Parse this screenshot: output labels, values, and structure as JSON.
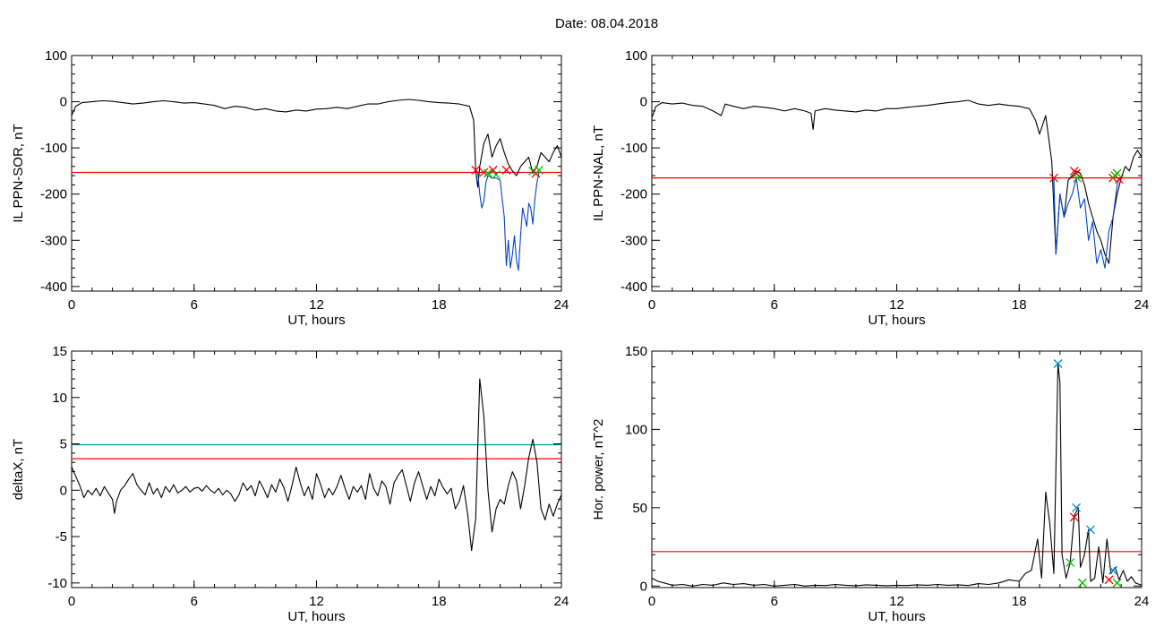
{
  "page": {
    "title": "Date:  08.04.2018"
  },
  "chart_data": [
    {
      "type": "line",
      "title": "",
      "xlabel": "UT, hours",
      "ylabel": "IL PPN-SOR, nT",
      "xlim": [
        0,
        24
      ],
      "ylim": [
        -410,
        100
      ],
      "xticks": [
        0,
        6,
        12,
        18,
        24
      ],
      "yticks": [
        100,
        0,
        -100,
        -200,
        -300,
        -400
      ],
      "thresholds": [
        {
          "y": -153,
          "color": "#ff0000"
        }
      ],
      "series": [
        {
          "color": "#000000",
          "x": [
            0,
            0.2,
            0.5,
            1,
            1.5,
            2,
            2.5,
            3,
            3.5,
            4,
            4.5,
            5,
            5.5,
            6,
            6.5,
            7,
            7.5,
            8,
            8.5,
            9,
            9.5,
            10,
            10.5,
            11,
            11.5,
            12,
            12.5,
            13,
            13.5,
            14,
            14.5,
            15,
            15.5,
            16,
            16.5,
            17,
            17.5,
            18,
            18.5,
            19,
            19.5,
            19.7,
            19.8,
            19.9,
            20,
            20.2,
            20.4,
            20.6,
            20.8,
            21,
            21.2,
            21.4,
            21.6,
            21.8,
            22,
            22.2,
            22.4,
            22.6,
            22.8,
            23,
            23.2,
            23.4,
            23.6,
            23.8,
            24
          ],
          "y": [
            -30,
            -10,
            -2,
            0,
            2,
            1,
            -2,
            -5,
            -3,
            0,
            2,
            0,
            -3,
            -2,
            -5,
            -8,
            -15,
            -10,
            -12,
            -18,
            -15,
            -20,
            -22,
            -18,
            -20,
            -16,
            -15,
            -12,
            -15,
            -10,
            -5,
            -5,
            0,
            3,
            5,
            3,
            0,
            -2,
            -3,
            -5,
            -10,
            -40,
            -150,
            -185,
            -140,
            -90,
            -70,
            -120,
            -95,
            -80,
            -110,
            -135,
            -150,
            -160,
            -140,
            -130,
            -120,
            -155,
            -140,
            -110,
            -120,
            -130,
            -110,
            -95,
            -120
          ]
        },
        {
          "color": "#0044cc",
          "x": [
            19.9,
            20,
            20.1,
            20.2,
            20.3,
            20.4,
            20.6,
            20.8,
            21,
            21.2,
            21.3,
            21.4,
            21.5,
            21.6,
            21.7,
            21.8,
            21.9,
            22,
            22.1,
            22.2,
            22.3,
            22.4,
            22.5,
            22.6,
            22.7,
            22.8,
            22.9
          ],
          "y": [
            -153,
            -200,
            -230,
            -215,
            -175,
            -160,
            -165,
            -165,
            -170,
            -250,
            -355,
            -300,
            -360,
            -330,
            -290,
            -345,
            -365,
            -290,
            -230,
            -250,
            -270,
            -220,
            -230,
            -265,
            -210,
            -175,
            -153
          ]
        }
      ],
      "markers": [
        {
          "x": 19.8,
          "y": -148,
          "color": "#ff0000",
          "symbol": "x"
        },
        {
          "x": 20.2,
          "y": -153,
          "color": "#ff0000",
          "symbol": "x"
        },
        {
          "x": 20.4,
          "y": -155,
          "color": "#00bb00",
          "symbol": "x"
        },
        {
          "x": 20.65,
          "y": -148,
          "color": "#ff0000",
          "symbol": "x"
        },
        {
          "x": 20.8,
          "y": -158,
          "color": "#00bb00",
          "symbol": "x"
        },
        {
          "x": 21.3,
          "y": -148,
          "color": "#ff0000",
          "symbol": "x"
        },
        {
          "x": 22.6,
          "y": -150,
          "color": "#00bb00",
          "symbol": "x"
        },
        {
          "x": 22.75,
          "y": -155,
          "color": "#ff0000",
          "symbol": "x"
        },
        {
          "x": 22.9,
          "y": -148,
          "color": "#00bb00",
          "symbol": "x"
        }
      ]
    },
    {
      "type": "line",
      "title": "",
      "xlabel": "UT, hours",
      "ylabel": "IL PPN-NAL, nT",
      "xlim": [
        0,
        24
      ],
      "ylim": [
        -410,
        100
      ],
      "xticks": [
        0,
        6,
        12,
        18,
        24
      ],
      "yticks": [
        100,
        0,
        -100,
        -200,
        -300,
        -400
      ],
      "thresholds": [
        {
          "y": -165,
          "color": "#ff0000"
        }
      ],
      "series": [
        {
          "color": "#000000",
          "x": [
            0,
            0.2,
            0.5,
            1,
            1.5,
            2,
            2.5,
            3,
            3.4,
            3.6,
            4,
            4.5,
            5,
            5.5,
            6,
            6.5,
            7,
            7.5,
            7.8,
            7.9,
            8,
            8.5,
            9,
            9.5,
            10,
            10.5,
            11,
            11.5,
            12,
            12.5,
            13,
            13.5,
            14,
            14.5,
            15,
            15.5,
            16,
            16.5,
            17,
            17.5,
            18,
            18.5,
            18.8,
            19,
            19.3,
            19.6,
            19.8,
            20,
            20.2,
            20.4,
            20.6,
            20.8,
            21,
            21.2,
            21.4,
            21.6,
            21.8,
            22,
            22.2,
            22.4,
            22.6,
            22.8,
            23,
            23.2,
            23.4,
            23.6,
            23.8,
            24
          ],
          "y": [
            -35,
            -10,
            -2,
            -5,
            -3,
            -8,
            -10,
            -20,
            -30,
            -5,
            -10,
            -15,
            -10,
            -12,
            -15,
            -20,
            -15,
            -20,
            -25,
            -60,
            -20,
            -15,
            -18,
            -20,
            -22,
            -18,
            -20,
            -15,
            -15,
            -12,
            -10,
            -8,
            -5,
            -2,
            0,
            3,
            -5,
            -8,
            -5,
            -8,
            -10,
            -15,
            -40,
            -70,
            -30,
            -130,
            -330,
            -200,
            -250,
            -170,
            -160,
            -150,
            -155,
            -180,
            -220,
            -250,
            -280,
            -300,
            -330,
            -350,
            -250,
            -200,
            -165,
            -140,
            -150,
            -120,
            -105,
            -120
          ]
        },
        {
          "color": "#0044cc",
          "x": [
            19.7,
            19.8,
            20,
            20.2,
            20.4,
            20.6,
            20.8,
            21,
            21.2,
            21.4,
            21.6,
            21.8,
            22,
            22.2,
            22.4,
            22.6,
            22.8,
            22.9
          ],
          "y": [
            -165,
            -330,
            -200,
            -250,
            -220,
            -200,
            -165,
            -230,
            -210,
            -300,
            -260,
            -350,
            -320,
            -360,
            -280,
            -250,
            -180,
            -165
          ]
        }
      ],
      "markers": [
        {
          "x": 19.7,
          "y": -165,
          "color": "#ff0000",
          "symbol": "x"
        },
        {
          "x": 20.7,
          "y": -150,
          "color": "#ff0000",
          "symbol": "x"
        },
        {
          "x": 20.8,
          "y": -155,
          "color": "#ff0000",
          "symbol": "x"
        },
        {
          "x": 20.85,
          "y": -165,
          "color": "#00bb00",
          "symbol": "x"
        },
        {
          "x": 22.6,
          "y": -165,
          "color": "#ff0000",
          "symbol": "x"
        },
        {
          "x": 22.7,
          "y": -160,
          "color": "#00bb00",
          "symbol": "x"
        },
        {
          "x": 22.8,
          "y": -155,
          "color": "#00bb00",
          "symbol": "x"
        },
        {
          "x": 22.9,
          "y": -168,
          "color": "#ff0000",
          "symbol": "x"
        }
      ]
    },
    {
      "type": "line",
      "title": "",
      "xlabel": "UT, hours",
      "ylabel": "deltaX, nT",
      "xlim": [
        0,
        24
      ],
      "ylim": [
        -10.5,
        15
      ],
      "xticks": [
        0,
        6,
        12,
        18,
        24
      ],
      "yticks": [
        15,
        10,
        5,
        0,
        -5,
        -10
      ],
      "thresholds": [
        {
          "y": 4.9,
          "color": "#0088aa"
        },
        {
          "y": 3.4,
          "color": "#ff0000"
        }
      ],
      "series": [
        {
          "color": "#000000",
          "x": [
            0,
            0.2,
            0.4,
            0.6,
            0.8,
            1,
            1.2,
            1.4,
            1.6,
            1.8,
            2,
            2.1,
            2.2,
            2.4,
            2.6,
            2.8,
            3,
            3.2,
            3.4,
            3.6,
            3.8,
            4,
            4.2,
            4.4,
            4.6,
            4.8,
            5,
            5.2,
            5.4,
            5.6,
            5.8,
            6,
            6.2,
            6.4,
            6.6,
            6.8,
            7,
            7.2,
            7.4,
            7.6,
            7.8,
            8,
            8.2,
            8.4,
            8.6,
            8.8,
            9,
            9.2,
            9.4,
            9.6,
            9.8,
            10,
            10.2,
            10.4,
            10.6,
            10.8,
            11,
            11.2,
            11.4,
            11.6,
            11.8,
            12,
            12.2,
            12.4,
            12.6,
            12.8,
            13,
            13.2,
            13.4,
            13.6,
            13.8,
            14,
            14.2,
            14.4,
            14.6,
            14.8,
            15,
            15.2,
            15.4,
            15.6,
            15.8,
            16,
            16.2,
            16.4,
            16.6,
            16.8,
            17,
            17.2,
            17.4,
            17.6,
            17.8,
            18,
            18.2,
            18.4,
            18.6,
            18.8,
            19,
            19.2,
            19.4,
            19.6,
            19.8,
            20,
            20.2,
            20.4,
            20.6,
            20.8,
            21,
            21.2,
            21.4,
            21.6,
            21.8,
            22,
            22.2,
            22.4,
            22.6,
            22.8,
            23,
            23.2,
            23.4,
            23.6,
            23.8,
            24
          ],
          "y": [
            2.5,
            1.5,
            0.5,
            -0.8,
            0,
            -0.5,
            0.2,
            -0.6,
            0.4,
            -0.3,
            -1,
            -2.5,
            -1.2,
            0,
            0.5,
            1.2,
            1.8,
            0.6,
            0,
            -0.5,
            0.8,
            -0.4,
            0.2,
            -0.8,
            0.4,
            -0.2,
            0.6,
            -0.3,
            0,
            0.4,
            -0.2,
            0.2,
            0.3,
            -0.1,
            0.5,
            0,
            -0.3,
            0.2,
            -0.5,
            0,
            -0.4,
            -1.2,
            -0.5,
            0.8,
            0,
            0.5,
            -0.6,
            1,
            0.2,
            -0.8,
            0.6,
            -0.2,
            1.2,
            0.3,
            -1.2,
            0.5,
            2.5,
            0.8,
            -0.6,
            0.4,
            -1,
            1.8,
            0.6,
            -0.8,
            0.2,
            -0.5,
            0.4,
            1.6,
            0.2,
            -1,
            0.4,
            -0.2,
            0.5,
            -1,
            1.8,
            0.2,
            -0.6,
            1,
            0.4,
            -1.5,
            0.8,
            1.6,
            2.2,
            0.5,
            -1.2,
            0.8,
            2,
            0.5,
            -1,
            0.4,
            -0.6,
            1.2,
            0.3,
            -0.4,
            0.2,
            -2,
            -1.2,
            0.5,
            -2.5,
            -6.5,
            -3,
            12,
            8,
            0,
            -4.5,
            -2,
            -1,
            -1.5,
            0.5,
            2,
            1,
            -2,
            0.5,
            3.5,
            5.5,
            3,
            -2,
            -3.2,
            -1.5,
            -2.8,
            -1.5,
            -0.5
          ]
        }
      ],
      "markers": []
    },
    {
      "type": "line",
      "title": "",
      "xlabel": "UT, hours",
      "ylabel": "Hor. power, nT^2",
      "xlim": [
        0,
        24
      ],
      "ylim": [
        -1,
        150
      ],
      "xticks": [
        0,
        6,
        12,
        18,
        24
      ],
      "yticks": [
        150,
        100,
        50,
        0
      ],
      "thresholds": [
        {
          "y": 22,
          "color": "#ff0000"
        }
      ],
      "series": [
        {
          "color": "#000000",
          "x": [
            0,
            0.3,
            0.6,
            1,
            1.5,
            2,
            2.5,
            3,
            3.5,
            4,
            4.5,
            5,
            5.5,
            6,
            6.5,
            7,
            7.5,
            8,
            8.5,
            9,
            9.5,
            10,
            10.5,
            11,
            11.5,
            12,
            12.5,
            13,
            13.5,
            14,
            14.5,
            15,
            15.5,
            16,
            16.5,
            17,
            17.5,
            18,
            18.3,
            18.6,
            18.9,
            19.1,
            19.3,
            19.5,
            19.7,
            19.9,
            20,
            20.1,
            20.3,
            20.5,
            20.7,
            20.9,
            21,
            21.2,
            21.4,
            21.5,
            21.7,
            21.9,
            22.1,
            22.3,
            22.5,
            22.7,
            22.9,
            23.1,
            23.3,
            23.5,
            23.7,
            23.9,
            24
          ],
          "y": [
            5,
            3,
            2,
            0.5,
            1,
            0,
            1,
            0.5,
            2,
            1,
            1.5,
            0.5,
            1,
            0,
            0.5,
            1,
            0,
            0.5,
            0.3,
            1,
            0.5,
            0.2,
            0.8,
            0.5,
            0.2,
            0.5,
            0.3,
            0.8,
            0.5,
            1,
            0.5,
            0.8,
            0.3,
            1.5,
            1,
            2,
            4,
            3,
            8,
            10,
            30,
            5,
            60,
            40,
            8,
            142,
            130,
            20,
            5,
            15,
            45,
            50,
            12,
            20,
            36,
            3,
            5,
            25,
            2,
            30,
            8,
            12,
            4,
            10,
            3,
            6,
            2,
            1,
            0.5
          ]
        }
      ],
      "markers": [
        {
          "x": 19.9,
          "y": 142,
          "color": "#0088cc",
          "symbol": "x"
        },
        {
          "x": 20.8,
          "y": 50,
          "color": "#0088cc",
          "symbol": "x"
        },
        {
          "x": 20.7,
          "y": 44,
          "color": "#ff0000",
          "symbol": "x"
        },
        {
          "x": 21.5,
          "y": 36,
          "color": "#0088cc",
          "symbol": "x"
        },
        {
          "x": 20.5,
          "y": 15,
          "color": "#00bb00",
          "symbol": "x"
        },
        {
          "x": 21.1,
          "y": 2,
          "color": "#00bb00",
          "symbol": "x"
        },
        {
          "x": 22.6,
          "y": 10,
          "color": "#0088cc",
          "symbol": "x"
        },
        {
          "x": 22.4,
          "y": 4,
          "color": "#ff0000",
          "symbol": "x"
        },
        {
          "x": 22.8,
          "y": 2,
          "color": "#00bb00",
          "symbol": "x"
        }
      ]
    }
  ]
}
